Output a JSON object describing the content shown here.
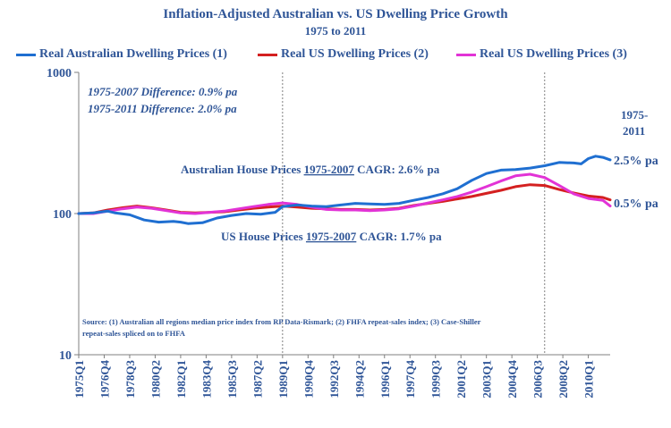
{
  "chart_data": {
    "type": "line",
    "title": "Inflation-Adjusted Australian vs. US Dwelling Price Growth",
    "subtitle": "1975 to 2011",
    "y_scale": "log",
    "ylim": [
      10,
      1000
    ],
    "y_ticks": [
      "10",
      "100",
      "1000"
    ],
    "x_tick_labels": [
      "1975Q1",
      "1976Q4",
      "1978Q3",
      "1980Q2",
      "1982Q1",
      "1983Q4",
      "1985Q3",
      "1987Q2",
      "1989Q1",
      "1990Q4",
      "1992Q3",
      "1994Q2",
      "1996Q1",
      "1997Q4",
      "1999Q3",
      "2001Q2",
      "2003Q1",
      "2004Q4",
      "2006Q3",
      "2008Q2",
      "2010Q1"
    ],
    "x_range": [
      1975.0,
      2011.5
    ],
    "legend_position": "top",
    "grid": false,
    "reference_lines_x": [
      1989.0,
      2007.0
    ],
    "series": [
      {
        "name": "Real Australian Dwelling Prices (1)",
        "color": "#1f6fd1",
        "points": [
          [
            1975.0,
            100
          ],
          [
            1976.0,
            101
          ],
          [
            1977.0,
            104
          ],
          [
            1977.5,
            101
          ],
          [
            1978.5,
            98
          ],
          [
            1979.5,
            90
          ],
          [
            1980.5,
            87
          ],
          [
            1981.5,
            88
          ],
          [
            1982.0,
            87
          ],
          [
            1982.5,
            85
          ],
          [
            1983.5,
            86
          ],
          [
            1984.5,
            93
          ],
          [
            1985.5,
            97
          ],
          [
            1986.5,
            100
          ],
          [
            1987.5,
            99
          ],
          [
            1988.5,
            102
          ],
          [
            1989.0,
            112
          ],
          [
            1990.0,
            115
          ],
          [
            1991.0,
            113
          ],
          [
            1992.0,
            112
          ],
          [
            1993.0,
            115
          ],
          [
            1994.0,
            118
          ],
          [
            1995.0,
            117
          ],
          [
            1996.0,
            116
          ],
          [
            1997.0,
            118
          ],
          [
            1998.0,
            124
          ],
          [
            1999.0,
            130
          ],
          [
            2000.0,
            138
          ],
          [
            2001.0,
            150
          ],
          [
            2002.0,
            172
          ],
          [
            2003.0,
            192
          ],
          [
            2004.0,
            203
          ],
          [
            2005.0,
            205
          ],
          [
            2006.0,
            210
          ],
          [
            2007.0,
            218
          ],
          [
            2008.0,
            230
          ],
          [
            2009.0,
            228
          ],
          [
            2009.5,
            225
          ],
          [
            2010.0,
            245
          ],
          [
            2010.5,
            255
          ],
          [
            2011.0,
            250
          ],
          [
            2011.5,
            240
          ]
        ]
      },
      {
        "name": "Real US Dwelling Prices (2)",
        "color": "#d42020",
        "points": [
          [
            1975.0,
            100
          ],
          [
            1976.0,
            101
          ],
          [
            1977.0,
            106
          ],
          [
            1978.0,
            110
          ],
          [
            1979.0,
            113
          ],
          [
            1980.0,
            110
          ],
          [
            1981.0,
            106
          ],
          [
            1982.0,
            102
          ],
          [
            1983.0,
            101
          ],
          [
            1984.0,
            102
          ],
          [
            1985.0,
            103
          ],
          [
            1986.0,
            106
          ],
          [
            1987.0,
            109
          ],
          [
            1988.0,
            111
          ],
          [
            1989.0,
            113
          ],
          [
            1990.0,
            111
          ],
          [
            1991.0,
            109
          ],
          [
            1992.0,
            108
          ],
          [
            1993.0,
            107
          ],
          [
            1994.0,
            107
          ],
          [
            1995.0,
            106
          ],
          [
            1996.0,
            107
          ],
          [
            1997.0,
            109
          ],
          [
            1998.0,
            114
          ],
          [
            1999.0,
            118
          ],
          [
            2000.0,
            122
          ],
          [
            2001.0,
            127
          ],
          [
            2002.0,
            132
          ],
          [
            2003.0,
            139
          ],
          [
            2004.0,
            146
          ],
          [
            2005.0,
            155
          ],
          [
            2006.0,
            160
          ],
          [
            2007.0,
            158
          ],
          [
            2008.0,
            148
          ],
          [
            2009.0,
            140
          ],
          [
            2010.0,
            133
          ],
          [
            2011.0,
            130
          ],
          [
            2011.5,
            125
          ]
        ]
      },
      {
        "name": "Real US Dwelling Prices (3)",
        "color": "#e233d6",
        "points": [
          [
            1975.0,
            100
          ],
          [
            1976.0,
            100
          ],
          [
            1977.0,
            104
          ],
          [
            1978.0,
            108
          ],
          [
            1979.0,
            111
          ],
          [
            1980.0,
            109
          ],
          [
            1981.0,
            105
          ],
          [
            1982.0,
            101
          ],
          [
            1983.0,
            100
          ],
          [
            1984.0,
            102
          ],
          [
            1985.0,
            104
          ],
          [
            1986.0,
            108
          ],
          [
            1987.0,
            112
          ],
          [
            1988.0,
            116
          ],
          [
            1989.0,
            119
          ],
          [
            1990.0,
            116
          ],
          [
            1991.0,
            111
          ],
          [
            1992.0,
            107
          ],
          [
            1993.0,
            106
          ],
          [
            1994.0,
            106
          ],
          [
            1995.0,
            105
          ],
          [
            1996.0,
            106
          ],
          [
            1997.0,
            108
          ],
          [
            1998.0,
            113
          ],
          [
            1999.0,
            119
          ],
          [
            2000.0,
            125
          ],
          [
            2001.0,
            132
          ],
          [
            2002.0,
            142
          ],
          [
            2003.0,
            155
          ],
          [
            2004.0,
            170
          ],
          [
            2005.0,
            185
          ],
          [
            2006.0,
            190
          ],
          [
            2007.0,
            180
          ],
          [
            2008.0,
            158
          ],
          [
            2009.0,
            138
          ],
          [
            2010.0,
            128
          ],
          [
            2011.0,
            124
          ],
          [
            2011.5,
            113
          ]
        ]
      }
    ]
  },
  "annotations": {
    "diff1": "1975-2007 Difference:  0.9% pa",
    "diff2": "1975-2011 Difference:  2.0% pa",
    "period_label_line1": "1975-",
    "period_label_line2": "2011",
    "aus_rate": "2.5% pa",
    "us_rate": "0.5% pa",
    "aus_cagr_prefix": "Australian House Prices ",
    "aus_cagr_period": "1975-2007",
    "aus_cagr_suffix": " CAGR: 2.6% pa",
    "us_cagr_prefix": "US House Prices ",
    "us_cagr_period": "1975-2007",
    "us_cagr_suffix": " CAGR: 1.7% pa",
    "source_line1": "Source: (1) Australian all regions median price index from RP Data-Rismark; (2) FHFA repeat-sales index; (3) Case-Shiller",
    "source_line2": "repeat-sales spliced on to FHFA"
  }
}
